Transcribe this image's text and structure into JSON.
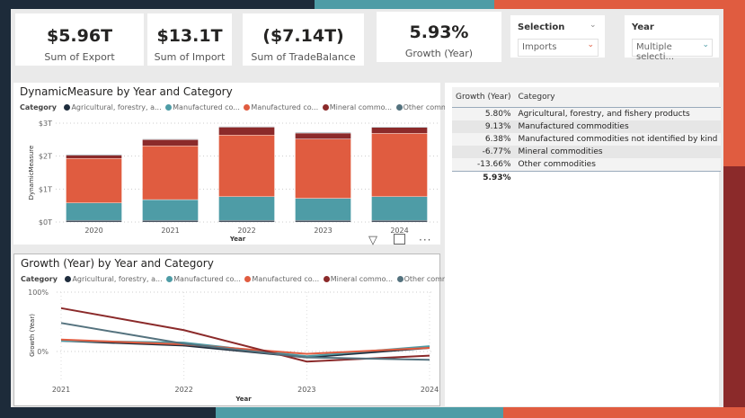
{
  "kpis": [
    {
      "value": "$5.96T",
      "label": "Sum of Export"
    },
    {
      "value": "$13.1T",
      "label": "Sum of Import"
    },
    {
      "value": "($7.14T)",
      "label": "Sum of TradeBalance"
    },
    {
      "value": "5.93%",
      "label": "Growth (Year)"
    }
  ],
  "slicers": {
    "selection": {
      "title": "Selection",
      "value": "Imports"
    },
    "year": {
      "title": "Year",
      "value": "Multiple selecti..."
    }
  },
  "colors": {
    "agr": "#1f2d3d",
    "manuf": "#4e9ca6",
    "mnk": "#e05c40",
    "mineral": "#8b2a2a",
    "other": "#54727e"
  },
  "legend": {
    "label": "Category",
    "items": [
      "Agricultural, forestry, a...",
      "Manufactured co...",
      "Manufactured co...",
      "Mineral commo...",
      "Other commo..."
    ]
  },
  "table": {
    "headers": [
      "Growth (Year)",
      "Category"
    ],
    "rows": [
      [
        "5.80%",
        "Agricultural, forestry, and fishery products"
      ],
      [
        "9.13%",
        "Manufactured commodities"
      ],
      [
        "6.38%",
        "Manufactured commodities not identified by kind"
      ],
      [
        "-6.77%",
        "Mineral commodities"
      ],
      [
        "-13.66%",
        "Other commodities"
      ]
    ],
    "total": "5.93%"
  },
  "chart_data": [
    {
      "type": "bar",
      "stacked": true,
      "title": "DynamicMeasure by Year and Category",
      "xlabel": "Year",
      "ylabel": "DynamicMeasure",
      "categories": [
        "2020",
        "2021",
        "2022",
        "2023",
        "2024"
      ],
      "yticks": [
        "$0T",
        "$1T",
        "$2T",
        "$3T"
      ],
      "ylim": [
        0,
        3
      ],
      "series": [
        {
          "name": "Agricultural, forestry, and fishery products",
          "values": [
            0.05,
            0.05,
            0.05,
            0.05,
            0.05
          ]
        },
        {
          "name": "Manufactured commodities",
          "values": [
            0.53,
            0.63,
            0.72,
            0.67,
            0.72
          ]
        },
        {
          "name": "Manufactured commodities not identified by kind",
          "values": [
            1.35,
            1.63,
            1.87,
            1.8,
            1.92
          ]
        },
        {
          "name": "Mineral commodities",
          "values": [
            0.1,
            0.19,
            0.24,
            0.18,
            0.18
          ]
        },
        {
          "name": "Other commodities",
          "values": [
            0.02,
            0.02,
            0.02,
            0.02,
            0.02
          ]
        }
      ]
    },
    {
      "type": "line",
      "title": "Growth (Year) by Year and Category",
      "xlabel": "Year",
      "ylabel": "Growth (Year)",
      "categories": [
        "2021",
        "2022",
        "2023",
        "2024"
      ],
      "yticks": [
        "0%",
        "100%"
      ],
      "ylim": [
        -50,
        100
      ],
      "series": [
        {
          "name": "Agricultural, forestry, and fishery products",
          "values": [
            18,
            10,
            -10,
            6
          ]
        },
        {
          "name": "Manufactured commodities",
          "values": [
            18,
            15,
            -8,
            9
          ]
        },
        {
          "name": "Manufactured commodities not identified by kind",
          "values": [
            20,
            12,
            -4,
            6
          ]
        },
        {
          "name": "Mineral commodities",
          "values": [
            73,
            36,
            -17,
            -7
          ]
        },
        {
          "name": "Other commodities",
          "values": [
            48,
            13,
            -10,
            -14
          ]
        }
      ]
    }
  ]
}
